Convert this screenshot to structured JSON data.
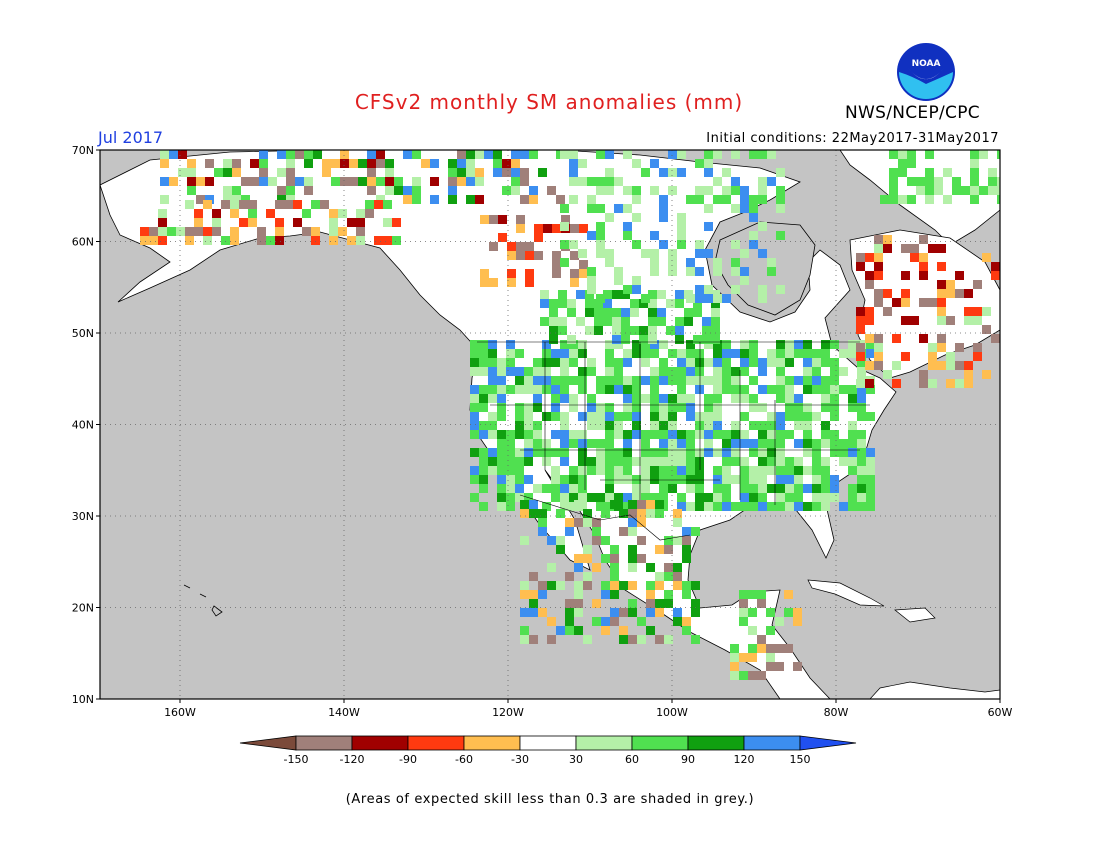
{
  "header": {
    "title": "CFSv2 monthly SM anomalies (mm)",
    "month": "Jul 2017",
    "initial_conditions": "Initial conditions: 22May2017-31May2017",
    "agency": "NWS/NCEP/CPC",
    "logo_text": "NOAA"
  },
  "map": {
    "lat_labels": [
      "70N",
      "60N",
      "50N",
      "40N",
      "30N",
      "20N",
      "10N"
    ],
    "lon_labels": [
      "160W",
      "140W",
      "120W",
      "100W",
      "80W",
      "60W"
    ],
    "colors": {
      "ocean_grey": "#c4c4c4",
      "land": "#ffffff"
    }
  },
  "legend": {
    "labels": [
      "-150",
      "-120",
      "-90",
      "-60",
      "-30",
      "30",
      "60",
      "90",
      "120",
      "150"
    ],
    "colors": [
      "#7b4a3a",
      "#a0807a",
      "#a00000",
      "#ff3a10",
      "#ffbe50",
      "#ffffff",
      "#b4f0a8",
      "#50e050",
      "#10a010",
      "#3c8ef0",
      "#2050f0"
    ]
  },
  "footer": {
    "note": "(Areas of expected skill less than 0.3 are shaded in grey.)"
  }
}
